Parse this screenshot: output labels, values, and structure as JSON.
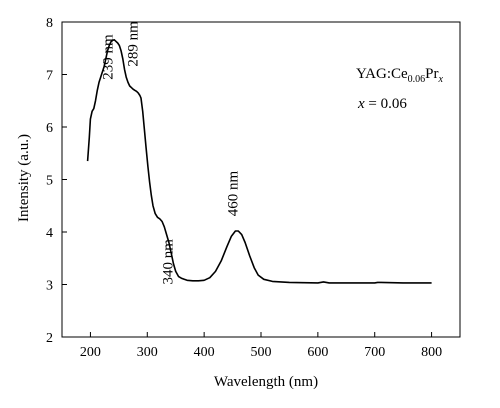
{
  "chart_data": {
    "type": "line",
    "title": "",
    "xlabel": "Wavelength (nm)",
    "ylabel": "Intensity (a.u.)",
    "xlim": [
      150,
      850
    ],
    "ylim": [
      2,
      8
    ],
    "xticks": [
      200,
      300,
      400,
      500,
      600,
      700,
      800
    ],
    "yticks": [
      2,
      3,
      4,
      5,
      6,
      7,
      8
    ],
    "grid": false,
    "series": [
      {
        "color": "#000000",
        "points": [
          [
            195,
            5.35
          ],
          [
            198,
            5.8
          ],
          [
            200,
            6.15
          ],
          [
            203,
            6.3
          ],
          [
            206,
            6.35
          ],
          [
            209,
            6.5
          ],
          [
            212,
            6.7
          ],
          [
            215,
            6.85
          ],
          [
            218,
            6.95
          ],
          [
            221,
            7.05
          ],
          [
            224,
            7.15
          ],
          [
            227,
            7.3
          ],
          [
            230,
            7.45
          ],
          [
            233,
            7.55
          ],
          [
            236,
            7.62
          ],
          [
            239,
            7.65
          ],
          [
            242,
            7.66
          ],
          [
            245,
            7.63
          ],
          [
            248,
            7.6
          ],
          [
            251,
            7.55
          ],
          [
            254,
            7.45
          ],
          [
            257,
            7.3
          ],
          [
            260,
            7.1
          ],
          [
            263,
            6.95
          ],
          [
            266,
            6.85
          ],
          [
            269,
            6.78
          ],
          [
            272,
            6.75
          ],
          [
            275,
            6.72
          ],
          [
            278,
            6.7
          ],
          [
            281,
            6.68
          ],
          [
            284,
            6.65
          ],
          [
            287,
            6.6
          ],
          [
            289,
            6.55
          ],
          [
            292,
            6.3
          ],
          [
            295,
            5.95
          ],
          [
            298,
            5.6
          ],
          [
            301,
            5.25
          ],
          [
            304,
            4.95
          ],
          [
            307,
            4.7
          ],
          [
            310,
            4.5
          ],
          [
            314,
            4.35
          ],
          [
            318,
            4.28
          ],
          [
            322,
            4.25
          ],
          [
            326,
            4.2
          ],
          [
            330,
            4.1
          ],
          [
            334,
            3.95
          ],
          [
            338,
            3.8
          ],
          [
            342,
            3.6
          ],
          [
            346,
            3.4
          ],
          [
            350,
            3.25
          ],
          [
            355,
            3.15
          ],
          [
            360,
            3.12
          ],
          [
            365,
            3.1
          ],
          [
            370,
            3.08
          ],
          [
            380,
            3.07
          ],
          [
            390,
            3.07
          ],
          [
            400,
            3.08
          ],
          [
            410,
            3.13
          ],
          [
            420,
            3.25
          ],
          [
            430,
            3.45
          ],
          [
            440,
            3.72
          ],
          [
            448,
            3.92
          ],
          [
            455,
            4.02
          ],
          [
            460,
            4.02
          ],
          [
            466,
            3.95
          ],
          [
            472,
            3.8
          ],
          [
            480,
            3.55
          ],
          [
            488,
            3.32
          ],
          [
            495,
            3.18
          ],
          [
            505,
            3.1
          ],
          [
            520,
            3.06
          ],
          [
            550,
            3.04
          ],
          [
            600,
            3.03
          ],
          [
            610,
            3.05
          ],
          [
            620,
            3.03
          ],
          [
            650,
            3.03
          ],
          [
            700,
            3.03
          ],
          [
            705,
            3.04
          ],
          [
            750,
            3.03
          ],
          [
            800,
            3.03
          ]
        ]
      }
    ],
    "annotations": [
      {
        "text": "239 nm",
        "x": 239,
        "y": 6.9,
        "rotate": -90
      },
      {
        "text": "289 nm",
        "x": 283,
        "y": 7.15,
        "rotate": -90
      },
      {
        "text": "340 nm",
        "x": 344,
        "y": 3.0,
        "rotate": -90
      },
      {
        "text": "460 nm",
        "x": 459,
        "y": 4.3,
        "rotate": -90
      }
    ],
    "legend_text": {
      "main": "YAG:Ce",
      "sub1": "0.06",
      "mid": "Pr",
      "sub2": "x",
      "param_var": "x",
      "param_rest": " = 0.06"
    }
  }
}
